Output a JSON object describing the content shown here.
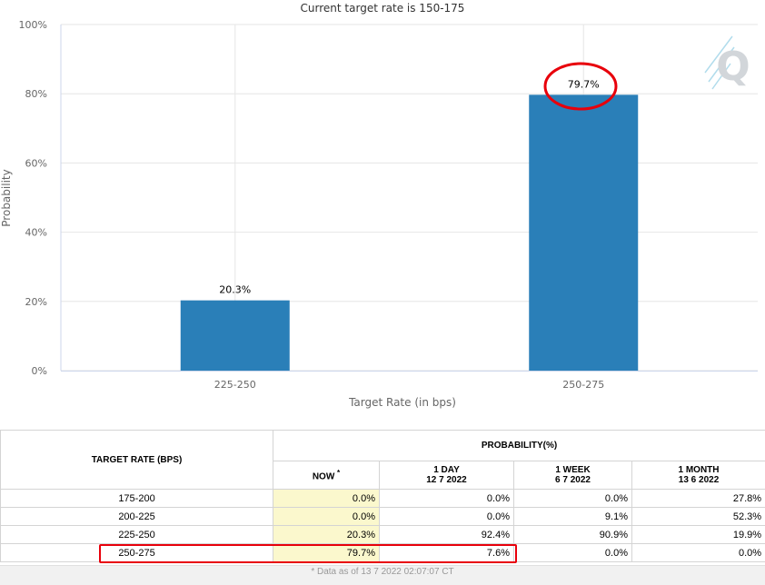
{
  "chart_data": {
    "type": "bar",
    "subtitle": "Current target rate is 150-175",
    "categories": [
      "225-250",
      "250-275"
    ],
    "values": [
      20.3,
      79.7
    ],
    "data_labels": [
      "20.3%",
      "79.7%"
    ],
    "xlabel": "Target Rate (in bps)",
    "ylabel": "Probability",
    "ylim": [
      0,
      100
    ],
    "yticks": [
      0,
      20,
      40,
      60,
      80,
      100
    ],
    "ytick_labels": [
      "0%",
      "20%",
      "40%",
      "60%",
      "80%",
      "100%"
    ],
    "grid": true,
    "bar_color": "#2a7fb8",
    "annotation": "red ellipse around 79.7% label"
  },
  "watermark": "Q",
  "table": {
    "headers": {
      "target_rate": "TARGET RATE (BPS)",
      "probability": "PROBABILITY(%)",
      "now": "NOW",
      "now_marker": "*",
      "day_label": "1 DAY",
      "day_date": "12 7 2022",
      "week_label": "1 WEEK",
      "week_date": "6 7 2022",
      "month_label": "1 MONTH",
      "month_date": "13 6 2022"
    },
    "rows": [
      {
        "rate": "175-200",
        "now": "0.0%",
        "day": "0.0%",
        "week": "0.0%",
        "month": "27.8%"
      },
      {
        "rate": "200-225",
        "now": "0.0%",
        "day": "0.0%",
        "week": "9.1%",
        "month": "52.3%"
      },
      {
        "rate": "225-250",
        "now": "20.3%",
        "day": "92.4%",
        "week": "90.9%",
        "month": "19.9%"
      },
      {
        "rate": "250-275",
        "now": "79.7%",
        "day": "7.6%",
        "week": "0.0%",
        "month": "0.0%"
      }
    ],
    "footnote": "* Data as of 13 7 2022 02:07:07 CT"
  },
  "colors": {
    "highlight": "#e8000b",
    "now_column": "#fbf8cd"
  }
}
